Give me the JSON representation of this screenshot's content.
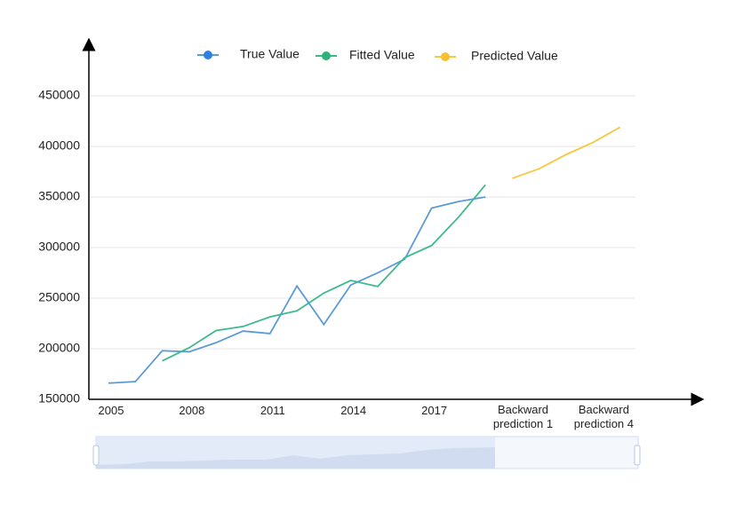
{
  "chart_data": {
    "type": "line",
    "categories": [
      "2005",
      null,
      null,
      "2008",
      null,
      null,
      "2011",
      null,
      null,
      "2014",
      null,
      null,
      "2017",
      null,
      null,
      "Backward prediction 1",
      null,
      null,
      "Backward prediction 4",
      null
    ],
    "series": [
      {
        "name": "True Value",
        "color": "#5b9bd5",
        "marker_color": "#2f7fe0",
        "values": [
          166000,
          167500,
          198000,
          197000,
          206000,
          217500,
          215000,
          262000,
          224000,
          263000,
          275000,
          288500,
          339000,
          345500,
          350000,
          null,
          null,
          null,
          null,
          null
        ]
      },
      {
        "name": "Fitted Value",
        "color": "#3dba8c",
        "marker_color": "#2db37a",
        "values": [
          null,
          null,
          188000,
          201000,
          218000,
          222000,
          231500,
          237500,
          255000,
          267500,
          261500,
          290000,
          302000,
          330000,
          362000,
          null,
          null,
          null,
          null,
          null
        ]
      },
      {
        "name": "Predicted Value",
        "color": "#f5c842",
        "marker_color": "#f6c02f",
        "values": [
          null,
          null,
          null,
          null,
          null,
          null,
          null,
          null,
          null,
          null,
          null,
          null,
          null,
          null,
          null,
          368500,
          378000,
          392000,
          404000,
          419000
        ]
      }
    ],
    "ylim": [
      150000,
      450000
    ],
    "yticks": [
      150000,
      200000,
      250000,
      300000,
      350000,
      400000,
      450000
    ],
    "grid": true,
    "legend": "top"
  }
}
